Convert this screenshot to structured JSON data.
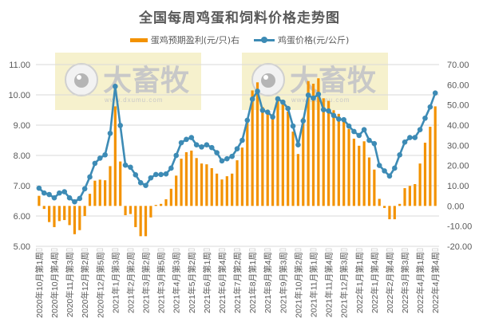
{
  "chart_data": {
    "type": "bar+line",
    "title": "全国每周鸡蛋和饲料价格走势图",
    "legend_position": "top",
    "grid": true,
    "left_axis": {
      "label": "鸡蛋价格(元/公斤)",
      "min": 5.0,
      "max": 11.0,
      "step": 1.0,
      "ticks": [
        "11.00",
        "10.00",
        "9.00",
        "8.00",
        "7.00",
        "6.00",
        "5.00"
      ]
    },
    "right_axis": {
      "label": "蛋鸡预期盈利(元/只)",
      "min": -20.0,
      "max": 70.0,
      "step": 10.0,
      "ticks": [
        "70.00",
        "60.00",
        "50.00",
        "40.00",
        "30.00",
        "20.00",
        "10.00",
        "0.00",
        "-10.00",
        "-20.00"
      ]
    },
    "x_tick_labels": [
      "2020年10月第1周",
      "2020年10月第4周",
      "2020年11月第3周",
      "2020年12月第2周",
      "2020年12月第5周",
      "2021年1月第3周",
      "2021年2月第2周",
      "2021年3月第2周",
      "2021年3月第5周",
      "2021年4月第3周",
      "2021年5月第2周",
      "2021年6月第1周",
      "2021年6月第4周",
      "2021年7月第2周",
      "2021年8月第1周",
      "2021年8月第4周",
      "2021年9月第3周",
      "2021年10月第2周",
      "2021年11月第1周",
      "2021年11月第4周",
      "2021年12月第3周",
      "2022年1月第1周",
      "2022年1月第4周",
      "2022年2月第4周",
      "2022年3月第3周",
      "2022年4月第1周",
      "2022年4月第4周"
    ],
    "x_tick_every": 3,
    "series": [
      {
        "name": "蛋鸡预期盈利(元/只)右",
        "type": "bar",
        "axis": "right",
        "color": "#f39200",
        "values": [
          5,
          -1.5,
          -8,
          -10.5,
          -7.5,
          -7,
          -9.5,
          -14,
          -12,
          -5,
          6,
          12.5,
          13,
          12.7,
          19.7,
          49.3,
          22,
          -4.6,
          -4,
          -10.5,
          -15,
          -15,
          -5.7,
          0.5,
          1,
          3.3,
          8.5,
          15,
          23.4,
          26.6,
          27.4,
          23.7,
          21,
          20.6,
          18.7,
          16,
          13.1,
          14.7,
          16,
          22.6,
          28.9,
          42,
          57.2,
          61.2,
          49,
          47,
          45.4,
          53.3,
          50.2,
          46.7,
          36.8,
          25.7,
          43.7,
          61.8,
          60.5,
          63.2,
          53.3,
          52,
          47.4,
          45.6,
          42,
          38.1,
          33.3,
          29.8,
          32,
          24,
          18,
          3.5,
          -1,
          -6.6,
          -6.6,
          1,
          8.8,
          9.9,
          10.8,
          21,
          31.3,
          39.2,
          49.3
        ]
      },
      {
        "name": "鸡蛋价格(元/公斤)",
        "type": "line",
        "axis": "left",
        "color": "#3d8bb5",
        "values": [
          6.92,
          6.76,
          6.71,
          6.6,
          6.76,
          6.8,
          6.6,
          6.47,
          6.58,
          6.9,
          7.29,
          7.74,
          7.91,
          8.02,
          8.73,
          10.28,
          8.99,
          7.68,
          7.61,
          7.36,
          7.1,
          7.01,
          7.26,
          7.37,
          7.37,
          7.39,
          7.58,
          8.0,
          8.42,
          8.53,
          8.59,
          8.35,
          8.28,
          8.35,
          8.26,
          8.09,
          7.82,
          7.89,
          7.97,
          8.22,
          8.5,
          9.16,
          9.86,
          10.12,
          9.49,
          9.43,
          9.27,
          9.87,
          9.76,
          9.55,
          8.97,
          8.35,
          9.14,
          9.99,
          9.89,
          10.02,
          9.51,
          9.47,
          9.32,
          9.2,
          9.18,
          8.97,
          8.79,
          8.66,
          8.85,
          8.5,
          8.39,
          7.67,
          7.49,
          7.32,
          7.58,
          8.02,
          8.44,
          8.59,
          8.59,
          8.85,
          9.23,
          9.6,
          10.06
        ]
      }
    ],
    "watermarks": [
      {
        "text": "大畜牧",
        "url_text": "www.dxumu.com"
      },
      {
        "text": "大畜牧",
        "url_text": "www.dxumu.com"
      }
    ]
  },
  "legend": {
    "bar_label": "蛋鸡预期盈利(元/只)右",
    "line_label": "鸡蛋价格(元/公斤)"
  }
}
